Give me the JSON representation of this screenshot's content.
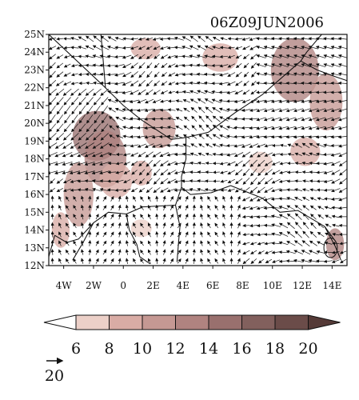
{
  "title": "06Z09JUN2006",
  "map": {
    "lon_range": [
      -5,
      15
    ],
    "lat_range": [
      12,
      25
    ],
    "lon_ticks": [
      {
        "value": -4,
        "label": "4W"
      },
      {
        "value": -2,
        "label": "2W"
      },
      {
        "value": 0,
        "label": "0"
      },
      {
        "value": 2,
        "label": "2E"
      },
      {
        "value": 4,
        "label": "4E"
      },
      {
        "value": 6,
        "label": "6E"
      },
      {
        "value": 8,
        "label": "8E"
      },
      {
        "value": 10,
        "label": "10E"
      },
      {
        "value": 12,
        "label": "12E"
      },
      {
        "value": 14,
        "label": "14E"
      }
    ],
    "lat_ticks": [
      {
        "value": 12,
        "label": "12N"
      },
      {
        "value": 13,
        "label": "13N"
      },
      {
        "value": 14,
        "label": "14N"
      },
      {
        "value": 15,
        "label": "15N"
      },
      {
        "value": 16,
        "label": "16N"
      },
      {
        "value": 17,
        "label": "17N"
      },
      {
        "value": 18,
        "label": "18N"
      },
      {
        "value": 19,
        "label": "19N"
      },
      {
        "value": 20,
        "label": "20N"
      },
      {
        "value": 21,
        "label": "21N"
      },
      {
        "value": 22,
        "label": "22N"
      },
      {
        "value": 23,
        "label": "23N"
      },
      {
        "value": 24,
        "label": "24N"
      },
      {
        "value": 25,
        "label": "25N"
      }
    ],
    "shading_regions": [
      {
        "lon": -1.8,
        "lat": 19.3,
        "rlon": 1.6,
        "rlat": 1.4,
        "level": 14
      },
      {
        "lon": -1.2,
        "lat": 18.0,
        "rlon": 1.4,
        "rlat": 1.6,
        "level": 12
      },
      {
        "lon": -3.0,
        "lat": 16.0,
        "rlon": 1.0,
        "rlat": 1.8,
        "level": 10
      },
      {
        "lon": -0.5,
        "lat": 16.8,
        "rlon": 1.1,
        "rlat": 1.0,
        "level": 8
      },
      {
        "lon": 2.4,
        "lat": 19.7,
        "rlon": 1.1,
        "rlat": 1.1,
        "level": 10
      },
      {
        "lon": 1.2,
        "lat": 17.2,
        "rlon": 0.7,
        "rlat": 0.7,
        "level": 8
      },
      {
        "lon": 6.5,
        "lat": 23.7,
        "rlon": 1.2,
        "rlat": 0.8,
        "level": 8
      },
      {
        "lon": 11.5,
        "lat": 23.0,
        "rlon": 1.6,
        "rlat": 1.8,
        "level": 12
      },
      {
        "lon": 13.6,
        "lat": 21.2,
        "rlon": 1.1,
        "rlat": 1.6,
        "level": 10
      },
      {
        "lon": 12.2,
        "lat": 18.4,
        "rlon": 1.0,
        "rlat": 0.8,
        "level": 8
      },
      {
        "lon": 9.2,
        "lat": 17.8,
        "rlon": 0.8,
        "rlat": 0.6,
        "level": 6
      },
      {
        "lon": 1.5,
        "lat": 24.2,
        "rlon": 1.0,
        "rlat": 0.6,
        "level": 8
      },
      {
        "lon": -4.2,
        "lat": 14.0,
        "rlon": 0.6,
        "rlat": 1.0,
        "level": 8
      },
      {
        "lon": 14.2,
        "lat": 13.2,
        "rlon": 0.6,
        "rlat": 0.9,
        "level": 12
      },
      {
        "lon": 1.2,
        "lat": 14.1,
        "rlon": 0.7,
        "rlat": 0.5,
        "level": 6
      }
    ],
    "boundaries": [
      [
        [
          -5,
          25
        ],
        [
          -1.2,
          22.0
        ],
        [
          0.0,
          21.0
        ],
        [
          1.2,
          20.2
        ],
        [
          3.2,
          19.1
        ],
        [
          4.2,
          19.2
        ],
        [
          5.7,
          19.5
        ],
        [
          7.5,
          20.6
        ],
        [
          9.3,
          21.6
        ],
        [
          11.9,
          23.5
        ],
        [
          13.0,
          23.0
        ],
        [
          14.3,
          22.6
        ],
        [
          15,
          22.4
        ]
      ],
      [
        [
          4.2,
          19.2
        ],
        [
          4.2,
          18.0
        ],
        [
          3.9,
          17.0
        ],
        [
          3.9,
          16.4
        ],
        [
          3.5,
          15.4
        ],
        [
          1.3,
          15.3
        ],
        [
          0.2,
          14.9
        ],
        [
          -1.0,
          15.0
        ],
        [
          -2.0,
          14.4
        ],
        [
          -3.0,
          13.5
        ],
        [
          -3.8,
          13.3
        ],
        [
          -4.6,
          13.7
        ]
      ],
      [
        [
          -5,
          16.5
        ],
        [
          -5,
          25
        ]
      ],
      [
        [
          -1.2,
          22.0
        ],
        [
          -1.5,
          25
        ]
      ],
      [
        [
          11.9,
          23.5
        ],
        [
          12.3,
          24.0
        ],
        [
          13.3,
          25
        ]
      ],
      [
        [
          3.9,
          16.4
        ],
        [
          4.5,
          16.0
        ],
        [
          5.9,
          16.1
        ],
        [
          7.2,
          16.5
        ],
        [
          9.3,
          15.8
        ],
        [
          10.5,
          15.0
        ],
        [
          11.7,
          15.1
        ],
        [
          13.5,
          14.2
        ],
        [
          14.2,
          13.4
        ]
      ],
      [
        [
          3.5,
          15.4
        ],
        [
          3.8,
          14.2
        ],
        [
          3.7,
          13.3
        ],
        [
          3.6,
          12.2
        ]
      ],
      [
        [
          0.2,
          14.9
        ],
        [
          0.4,
          14.0
        ],
        [
          0.9,
          13.2
        ],
        [
          1.1,
          12.5
        ],
        [
          1.8,
          12.1
        ]
      ],
      [
        [
          -2.0,
          14.4
        ],
        [
          -2.7,
          13.3
        ],
        [
          -3.4,
          12.3
        ]
      ],
      [
        [
          13.5,
          14.2
        ],
        [
          14.2,
          13.1
        ],
        [
          14.6,
          12.3
        ]
      ],
      [
        [
          -4.6,
          13.7
        ],
        [
          -5,
          12.5
        ]
      ]
    ],
    "lake": {
      "lon": 13.9,
      "lat": 13.0,
      "rlon": 0.45,
      "rlat": 0.55
    }
  },
  "colorbar": {
    "levels": [
      6,
      8,
      10,
      12,
      14,
      16,
      18,
      20
    ],
    "labels": [
      "6",
      "8",
      "10",
      "12",
      "14",
      "16",
      "18",
      "20"
    ],
    "colors": [
      "#ffffff",
      "#ecd0c8",
      "#d9aca5",
      "#c59893",
      "#b08380",
      "#99706e",
      "#82605d",
      "#6b4c49",
      "#553a37"
    ]
  },
  "reference_vector": {
    "label": "20"
  }
}
